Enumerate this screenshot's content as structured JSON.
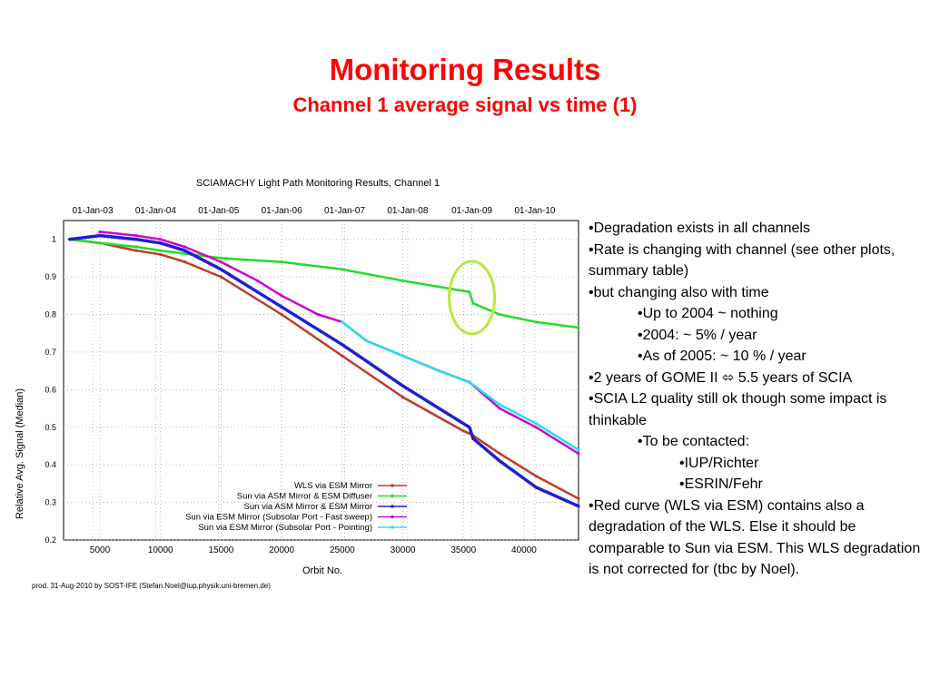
{
  "slide": {
    "title": "Monitoring Results",
    "subtitle": "Channel 1 average signal vs time (1)"
  },
  "bullets": [
    {
      "level": 1,
      "text": "•Degradation exists in all channels"
    },
    {
      "level": 1,
      "text": "•Rate is changing with channel (see other plots, summary table)"
    },
    {
      "level": 1,
      "text": "•but changing also with time"
    },
    {
      "level": 2,
      "text": "•Up to 2004 ~ nothing"
    },
    {
      "level": 2,
      "text": "•2004: ~ 5% / year"
    },
    {
      "level": 2,
      "text": "•As of 2005: ~ 10 % / year"
    },
    {
      "level": 1,
      "text": "•2 years of GOME II ⬄ 5.5 years of SCIA"
    },
    {
      "level": 1,
      "text": "•SCIA L2 quality still ok though some impact is thinkable"
    },
    {
      "level": 2,
      "text": "•To be contacted:"
    },
    {
      "level": 3,
      "text": "•IUP/Richter"
    },
    {
      "level": 3,
      "text": "•ESRIN/Fehr"
    },
    {
      "level": 1,
      "text": "•Red curve (WLS via ESM) contains also a degradation of the WLS. Else it should be comparable to Sun via ESM. This WLS degradation is not corrected for (tbc by Noel)."
    }
  ],
  "chart_data": {
    "type": "line",
    "title": "SCIAMACHY Light Path Monitoring Results, Channel 1",
    "xlabel": "Orbit No.",
    "ylabel": "Relative Avg. Signal (Median)",
    "xlim": [
      2000,
      44500
    ],
    "ylim": [
      0.2,
      1.05
    ],
    "x_ticks": [
      5000,
      10000,
      15000,
      20000,
      25000,
      30000,
      35000,
      40000
    ],
    "y_ticks": [
      0.2,
      0.3,
      0.4,
      0.5,
      0.6,
      0.7,
      0.8,
      0.9,
      1
    ],
    "top_axis": [
      {
        "label": "01-Jan-03",
        "orbit": 4400
      },
      {
        "label": "01-Jan-04",
        "orbit": 9600
      },
      {
        "label": "01-Jan-05",
        "orbit": 14800
      },
      {
        "label": "01-Jan-06",
        "orbit": 20000
      },
      {
        "label": "01-Jan-07",
        "orbit": 25200
      },
      {
        "label": "01-Jan-08",
        "orbit": 30400
      },
      {
        "label": "01-Jan-09",
        "orbit": 35700
      },
      {
        "label": "01-Jan-10",
        "orbit": 40900
      }
    ],
    "grid": true,
    "legend_position": "bottom-right",
    "footer": "prod. 31-Aug-2010 by SOST-IFE (Stefan.Noel@iup.physik.uni-bremen.de)",
    "series": [
      {
        "name": "WLS via ESM Mirror",
        "color": "#c0392b",
        "x": [
          2500,
          5000,
          8000,
          10000,
          12000,
          15000,
          20000,
          25000,
          30000,
          35000,
          35700,
          38000,
          41000,
          44500
        ],
        "y": [
          1.0,
          0.99,
          0.97,
          0.96,
          0.94,
          0.9,
          0.8,
          0.69,
          0.58,
          0.49,
          0.48,
          0.43,
          0.37,
          0.31
        ]
      },
      {
        "name": "Sun via ASM Mirror & ESM Diffuser",
        "color": "#22dd22",
        "x": [
          2500,
          5000,
          8000,
          10000,
          15000,
          20000,
          25000,
          30000,
          35500,
          35800,
          38000,
          41000,
          44500
        ],
        "y": [
          1.0,
          0.99,
          0.98,
          0.97,
          0.95,
          0.94,
          0.92,
          0.89,
          0.86,
          0.83,
          0.8,
          0.78,
          0.765
        ]
      },
      {
        "name": "Sun via ASM Mirror & ESM Mirror",
        "color": "#1f1fd0",
        "x": [
          2500,
          5000,
          8000,
          10000,
          12000,
          15000,
          18000,
          20000,
          25000,
          30000,
          35500,
          35800,
          38000,
          41000,
          44500
        ],
        "y": [
          1.0,
          1.01,
          1.0,
          0.99,
          0.97,
          0.92,
          0.86,
          0.82,
          0.72,
          0.61,
          0.5,
          0.47,
          0.41,
          0.34,
          0.29
        ]
      },
      {
        "name": "Sun via ESM Mirror (Subsolar Port - Fast sweep)",
        "color": "#d000d0",
        "x": [
          5000,
          8000,
          10000,
          12000,
          15000,
          18000,
          20000,
          23000,
          25000,
          27000,
          30000,
          33000,
          35500,
          38000,
          41000,
          44500
        ],
        "y": [
          1.02,
          1.01,
          1.0,
          0.98,
          0.94,
          0.89,
          0.85,
          0.8,
          0.78,
          0.73,
          0.69,
          0.65,
          0.62,
          0.55,
          0.5,
          0.43
        ]
      },
      {
        "name": "Sun via ESM Mirror (Subsolar Port - Pointing)",
        "color": "#22e0e8",
        "x": [
          25000,
          27000,
          30000,
          33000,
          35500,
          38000,
          41000,
          44500
        ],
        "y": [
          0.78,
          0.73,
          0.69,
          0.65,
          0.62,
          0.56,
          0.51,
          0.44
        ]
      }
    ],
    "annotation": "circle-around-jan-2009-jump"
  }
}
